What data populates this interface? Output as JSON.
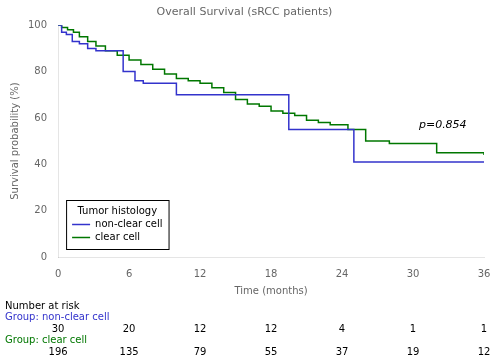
{
  "chart_data": {
    "type": "line",
    "title": "Overall Survival (sRCC patients)",
    "xlabel": "Time (months)",
    "ylabel": "Survival probability (%)",
    "xlim": [
      0,
      36
    ],
    "ylim": [
      0,
      100
    ],
    "xticks": [
      0,
      6,
      12,
      18,
      24,
      30,
      36
    ],
    "yticks": [
      0,
      20,
      40,
      60,
      80,
      100
    ],
    "grid": false,
    "legend": "lower left",
    "legend_title": "Tumor histology",
    "series": [
      {
        "name": "non-clear cell",
        "color": "#3333cc",
        "line_style": "step",
        "x": [
          0,
          0.3,
          0.7,
          1.2,
          1.8,
          2.5,
          3.2,
          4.0,
          5.5,
          6.5,
          7.2,
          10.0,
          12.0,
          17.5,
          19.5,
          24.5,
          25.0,
          36.0
        ],
        "values": [
          100,
          97,
          96,
          93,
          92,
          90,
          89,
          89,
          80,
          76,
          75,
          70,
          70,
          70,
          55,
          55,
          41,
          41
        ]
      },
      {
        "name": "clear cell",
        "color": "#007700",
        "line_style": "step",
        "x": [
          0,
          0.3,
          0.8,
          1.3,
          1.8,
          2.5,
          3.2,
          4.0,
          5.0,
          6.0,
          7.0,
          8.0,
          9.0,
          10.0,
          11.0,
          12.0,
          13.0,
          14.0,
          15.0,
          16.0,
          17.0,
          18.0,
          19.0,
          20.0,
          21.0,
          22.0,
          23.0,
          24.5,
          26.0,
          28.0,
          30.0,
          32.0,
          36.0
        ],
        "values": [
          100,
          99,
          98,
          97,
          95,
          93,
          91,
          89,
          87,
          85,
          83,
          81,
          79,
          77,
          76,
          75,
          73,
          71,
          68,
          66,
          65,
          63,
          62,
          61,
          59,
          58,
          57,
          55,
          50,
          49,
          49,
          45,
          44
        ]
      }
    ],
    "annotations": [
      {
        "text": "p=0.854",
        "x": 30.5,
        "y": 57
      }
    ],
    "risk_table": {
      "title": "Number at risk",
      "times": [
        0,
        6,
        12,
        18,
        24,
        30,
        36
      ],
      "rows": [
        {
          "name": "Group: non-clear cell",
          "color": "#3333cc",
          "values": [
            30,
            20,
            12,
            12,
            4,
            1,
            1
          ]
        },
        {
          "name": "Group: clear cell",
          "color": "#007700",
          "values": [
            196,
            135,
            79,
            55,
            37,
            19,
            12
          ]
        }
      ]
    }
  }
}
